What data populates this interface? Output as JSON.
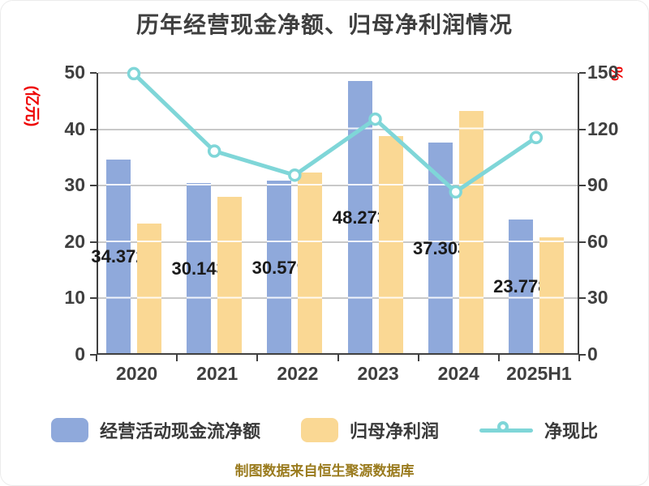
{
  "title": "历年经营现金净额、归母净利润情况",
  "left_axis": {
    "title": "(亿元)",
    "ticks": [
      0,
      10,
      20,
      30,
      40,
      50
    ],
    "range": [
      0,
      50
    ]
  },
  "right_axis": {
    "title": "%",
    "ticks": [
      0,
      30,
      60,
      90,
      120,
      150
    ],
    "range": [
      0,
      150
    ]
  },
  "legend": [
    {
      "label": "经营活动现金流净额",
      "type": "bar",
      "color": "#8fa9db"
    },
    {
      "label": "归母净利润",
      "type": "bar",
      "color": "#fad894"
    },
    {
      "label": "净现比",
      "type": "line",
      "color": "#7fd6d8"
    }
  ],
  "footnote": "制图数据来自恒生聚源数据库",
  "colors": {
    "bar_cashflow": "#8fa9db",
    "bar_profit": "#fad894",
    "line_ratio": "#7fd6d8",
    "axis": "#404040",
    "gridline": "#c8c8c8",
    "axis_unit_red": "#ee0000",
    "footnote_gold": "#9a7b1e",
    "title_gray": "#3f3f3f"
  },
  "chart_data": {
    "type": "bar",
    "subtype": "combo-bar-line",
    "categories": [
      "2020",
      "2021",
      "2022",
      "2023",
      "2024",
      "2025H1"
    ],
    "series": [
      {
        "name": "经营活动现金流净额",
        "type": "bar",
        "axis": "left",
        "color": "#8fa9db",
        "values": [
          34.372,
          30.143,
          30.579,
          48.273,
          37.303,
          23.778
        ],
        "data_labels": [
          "34.372",
          "30.143",
          "30.579",
          "48.273",
          "37.303",
          "23.778"
        ]
      },
      {
        "name": "归母净利润",
        "type": "bar",
        "axis": "left",
        "color": "#fad894",
        "values": [
          23.0,
          27.8,
          32.0,
          38.5,
          43.0,
          20.6
        ],
        "data_labels": []
      },
      {
        "name": "净现比",
        "type": "line",
        "axis": "right",
        "color": "#7fd6d8",
        "marker": "circle-white-fill",
        "values": [
          149.6,
          108.4,
          95.6,
          125.4,
          86.7,
          115.6
        ]
      }
    ],
    "title": "历年经营现金净额、归母净利润情况",
    "xlabel": "",
    "ylabel_left": "(亿元)",
    "ylabel_right": "%",
    "ylim_left": [
      0,
      50
    ],
    "ylim_right": [
      0,
      150
    ],
    "grid": true,
    "legend_position": "bottom"
  }
}
